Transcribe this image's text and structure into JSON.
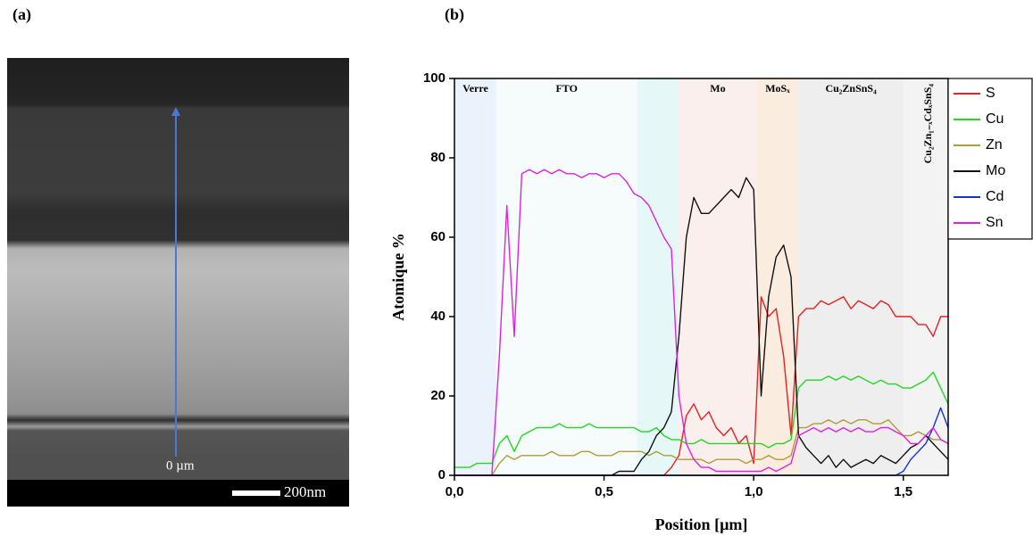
{
  "panels": {
    "a": "(a)",
    "b": "(b)"
  },
  "image": {
    "origin_label": "0 µm",
    "scale_label": "200nm"
  },
  "chart_data": {
    "type": "line",
    "xlabel": "Position [µm]",
    "ylabel": "Atomique %",
    "xlim": [
      0,
      1.65
    ],
    "ylim": [
      0,
      100
    ],
    "xticks": [
      {
        "value": 0,
        "label": "0,0"
      },
      {
        "value": 0.5,
        "label": "0,5"
      },
      {
        "value": 1,
        "label": "1,0"
      },
      {
        "value": 1.5,
        "label": "1,5"
      }
    ],
    "yticks": [
      0,
      20,
      40,
      60,
      80,
      100
    ],
    "legend": "outside upper right",
    "regions": [
      {
        "label": "Verre",
        "start": 0,
        "end": 0.14,
        "color": "#eaf3fb"
      },
      {
        "label": "FTO",
        "start": 0.14,
        "end": 0.61,
        "color": "#f6fcfc"
      },
      {
        "label": null,
        "start": 0.61,
        "end": 0.75,
        "color": "#e6f7f8"
      },
      {
        "label": "Mo",
        "start": 0.75,
        "end": 1.01,
        "color": "#fbefed"
      },
      {
        "label": "MoSₓ",
        "start": 1.01,
        "end": 1.15,
        "color": "#fbece0"
      },
      {
        "label": "Cu₂ZnSnS₄",
        "start": 1.15,
        "end": 1.5,
        "color": "#eeeeee"
      },
      {
        "label": "Cu₂Zn₁₋ₓCdₓSnS₄",
        "start": 1.5,
        "end": 1.65,
        "color": "#f3f3f3"
      }
    ],
    "x": [
      0,
      0.025,
      0.05,
      0.075,
      0.1,
      0.125,
      0.15,
      0.175,
      0.2,
      0.225,
      0.25,
      0.275,
      0.3,
      0.325,
      0.35,
      0.375,
      0.4,
      0.425,
      0.45,
      0.475,
      0.5,
      0.525,
      0.55,
      0.575,
      0.6,
      0.625,
      0.65,
      0.675,
      0.7,
      0.725,
      0.75,
      0.775,
      0.8,
      0.825,
      0.85,
      0.875,
      0.9,
      0.925,
      0.95,
      0.975,
      1,
      1.025,
      1.05,
      1.075,
      1.1,
      1.125,
      1.15,
      1.175,
      1.2,
      1.225,
      1.25,
      1.275,
      1.3,
      1.325,
      1.35,
      1.375,
      1.4,
      1.425,
      1.45,
      1.475,
      1.5,
      1.525,
      1.55,
      1.575,
      1.6,
      1.625,
      1.65
    ],
    "series": [
      {
        "name": "S",
        "color": "#e32222",
        "values": [
          0,
          0,
          0,
          0,
          0,
          0,
          0,
          0,
          0,
          0,
          0,
          0,
          0,
          0,
          0,
          0,
          0,
          0,
          0,
          0,
          0,
          0,
          0,
          0,
          0,
          0,
          0,
          0,
          0,
          2,
          5,
          15,
          18,
          14,
          16,
          12,
          10,
          12,
          8,
          10,
          3,
          45,
          40,
          42,
          30,
          10,
          40,
          42,
          42,
          44,
          43,
          44,
          45,
          42,
          44,
          43,
          42,
          44,
          43,
          40,
          40,
          40,
          38,
          38,
          35,
          40,
          40
        ]
      },
      {
        "name": "Cu",
        "color": "#22d822",
        "values": [
          2,
          2,
          2,
          3,
          3,
          3,
          8,
          10,
          6,
          10,
          11,
          12,
          12,
          12,
          13,
          12,
          12,
          12,
          13,
          12,
          12,
          12,
          12,
          12,
          12,
          11,
          11,
          12,
          10,
          9,
          9,
          8,
          8,
          9,
          8,
          8,
          8,
          8,
          8,
          8,
          8,
          8,
          7,
          8,
          8,
          9,
          22,
          24,
          24,
          24,
          25,
          24,
          25,
          24,
          25,
          24,
          23,
          24,
          23,
          23,
          22,
          22,
          23,
          24,
          26,
          22,
          18
        ]
      },
      {
        "name": "Zn",
        "color": "#b09c3a",
        "values": [
          0,
          0,
          0,
          0,
          0,
          0,
          3,
          5,
          4,
          5,
          5,
          5,
          5,
          6,
          5,
          5,
          5,
          6,
          6,
          5,
          5,
          5,
          6,
          6,
          6,
          6,
          5,
          6,
          5,
          5,
          4,
          4,
          4,
          4,
          3,
          4,
          4,
          4,
          4,
          3,
          4,
          4,
          5,
          4,
          4,
          5,
          12,
          12,
          13,
          13,
          14,
          13,
          14,
          13,
          14,
          14,
          13,
          13,
          14,
          12,
          10,
          10,
          11,
          10,
          9,
          9,
          8
        ]
      },
      {
        "name": "Mo",
        "color": "#111111",
        "values": [
          0,
          0,
          0,
          0,
          0,
          0,
          0,
          0,
          0,
          0,
          0,
          0,
          0,
          0,
          0,
          0,
          0,
          0,
          0,
          0,
          0,
          0,
          1,
          1,
          1,
          4,
          6,
          10,
          12,
          16,
          35,
          60,
          70,
          66,
          66,
          68,
          70,
          72,
          70,
          75,
          72,
          20,
          45,
          55,
          58,
          50,
          10,
          7,
          5,
          3,
          5,
          2,
          4,
          2,
          3,
          4,
          3,
          5,
          4,
          3,
          5,
          7,
          8,
          10,
          8,
          6,
          4
        ]
      },
      {
        "name": "Cd",
        "color": "#1432d2",
        "values": [
          0,
          0,
          0,
          0,
          0,
          0,
          0,
          0,
          0,
          0,
          0,
          0,
          0,
          0,
          0,
          0,
          0,
          0,
          0,
          0,
          0,
          0,
          0,
          0,
          0,
          0,
          0,
          0,
          0,
          0,
          0,
          0,
          0,
          0,
          0,
          0,
          0,
          0,
          0,
          0,
          0,
          0,
          0,
          0,
          0,
          0,
          0,
          0,
          0,
          0,
          0,
          0,
          0,
          0,
          0,
          0,
          0,
          0,
          0,
          0,
          1,
          4,
          6,
          8,
          12,
          17,
          12
        ]
      },
      {
        "name": "Sn",
        "color": "#e022e0",
        "values": [
          0,
          0,
          0,
          0,
          0,
          0,
          30,
          68,
          35,
          76,
          77,
          76,
          77,
          76,
          77,
          76,
          76,
          75,
          76,
          76,
          75,
          76,
          76,
          74,
          71,
          70,
          68,
          64,
          60,
          57,
          20,
          8,
          4,
          2,
          2,
          1,
          1,
          1,
          1,
          1,
          1,
          1,
          2,
          1,
          2,
          3,
          10,
          11,
          12,
          11,
          12,
          11,
          12,
          11,
          12,
          11,
          11,
          12,
          12,
          11,
          10,
          8,
          8,
          10,
          12,
          9,
          8
        ]
      }
    ]
  }
}
